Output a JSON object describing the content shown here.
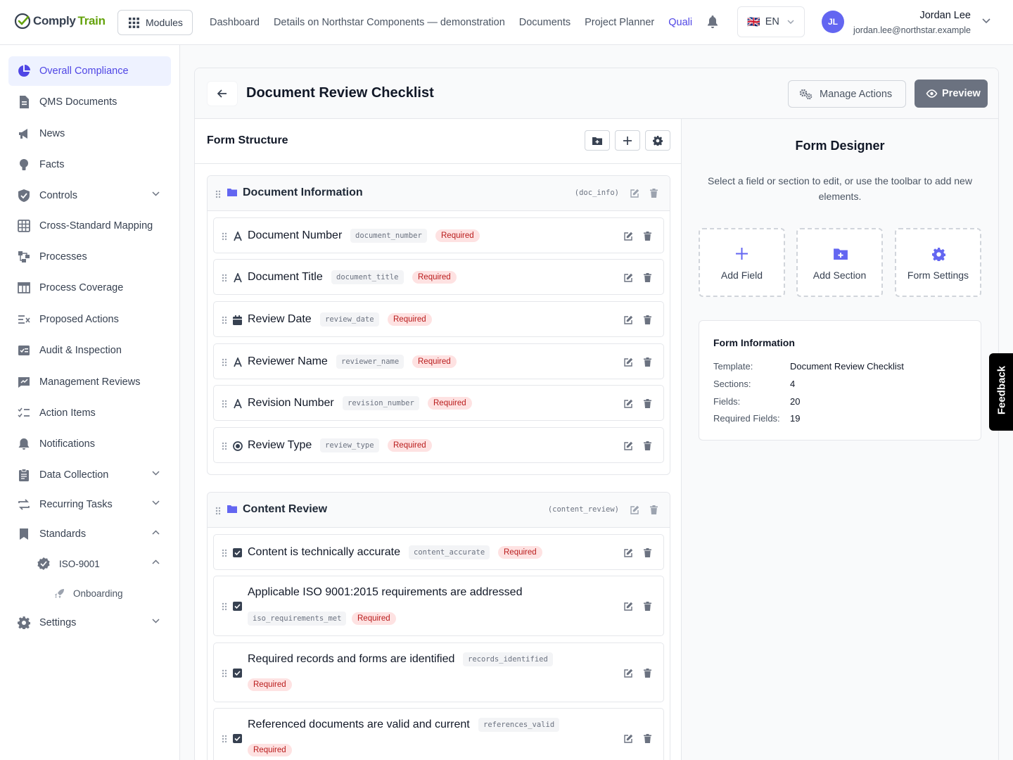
{
  "app": {
    "brand_part1": "Comply",
    "brand_part2": "Train",
    "modules_label": "Modules"
  },
  "nav": [
    "Dashboard",
    "Details on Northstar Components — demonstration",
    "Documents",
    "Project Planner",
    "Quali"
  ],
  "lang": {
    "flag": "🇬🇧",
    "code": "EN"
  },
  "user": {
    "initials": "JL",
    "name": "Jordan Lee",
    "email": "jordan.lee@northstar.example"
  },
  "sidebar": [
    {
      "label": "Overall Compliance",
      "icon": "pie-chart-icon",
      "active": true
    },
    {
      "label": "QMS Documents",
      "icon": "document-icon"
    },
    {
      "label": "News",
      "icon": "megaphone-icon"
    },
    {
      "label": "Facts",
      "icon": "lightbulb-icon"
    },
    {
      "label": "Controls",
      "icon": "shield-icon",
      "chevron": "down"
    },
    {
      "label": "Cross-Standard Mapping",
      "icon": "grid-icon"
    },
    {
      "label": "Processes",
      "icon": "process-icon"
    },
    {
      "label": "Process Coverage",
      "icon": "table-icon"
    },
    {
      "label": "Proposed Actions",
      "icon": "list-x-icon"
    },
    {
      "label": "Audit & Inspection",
      "icon": "audit-icon"
    },
    {
      "label": "Management Reviews",
      "icon": "review-icon"
    },
    {
      "label": "Action Items",
      "icon": "checklist-icon"
    },
    {
      "label": "Notifications",
      "icon": "bell-icon"
    },
    {
      "label": "Data Collection",
      "icon": "clipboard-icon",
      "chevron": "down"
    },
    {
      "label": "Recurring Tasks",
      "icon": "repeat-icon",
      "chevron": "down"
    },
    {
      "label": "Standards",
      "icon": "bookmark-icon",
      "chevron": "up"
    },
    {
      "label": "ISO-9001",
      "icon": "badge-check-icon",
      "chevron": "up"
    },
    {
      "label": "Onboarding",
      "icon": "rocket-icon"
    },
    {
      "label": "Settings",
      "icon": "gear-icon",
      "chevron": "down"
    }
  ],
  "page": {
    "title": "Document Review Checklist",
    "manage_label": "Manage Actions",
    "preview_label": "Preview"
  },
  "form_structure": {
    "title": "Form Structure",
    "sections": [
      {
        "title": "Document Information",
        "key": "(doc_info)",
        "fields": [
          {
            "label": "Document Number",
            "key": "document_number",
            "required": "Required",
            "icon": "text-icon"
          },
          {
            "label": "Document Title",
            "key": "document_title",
            "required": "Required",
            "icon": "text-icon"
          },
          {
            "label": "Review Date",
            "key": "review_date",
            "required": "Required",
            "icon": "calendar-icon"
          },
          {
            "label": "Reviewer Name",
            "key": "reviewer_name",
            "required": "Required",
            "icon": "text-icon"
          },
          {
            "label": "Revision Number",
            "key": "revision_number",
            "required": "Required",
            "icon": "text-icon"
          },
          {
            "label": "Review Type",
            "key": "review_type",
            "required": "Required",
            "icon": "radio-icon"
          }
        ]
      },
      {
        "title": "Content Review",
        "key": "(content_review)",
        "fields": [
          {
            "label": "Content is technically accurate",
            "key": "content_accurate",
            "required": "Required",
            "icon": "checkbox-icon"
          },
          {
            "label": "Applicable ISO 9001:2015 requirements are addressed",
            "key": "iso_requirements_met",
            "required": "Required",
            "icon": "checkbox-icon"
          },
          {
            "label": "Required records and forms are identified",
            "key": "records_identified",
            "required": "Required",
            "icon": "checkbox-icon"
          },
          {
            "label": "Referenced documents are valid and current",
            "key": "references_valid",
            "required": "Required",
            "icon": "checkbox-icon"
          }
        ]
      }
    ]
  },
  "designer": {
    "title": "Form Designer",
    "help": "Select a field or section to edit, or use the toolbar to add new elements.",
    "actions": [
      {
        "label": "Add Field",
        "icon": "plus-icon"
      },
      {
        "label": "Add Section",
        "icon": "folder-plus-icon"
      },
      {
        "label": "Form Settings",
        "icon": "gear-icon"
      }
    ],
    "info": {
      "title": "Form Information",
      "rows": [
        {
          "k": "Template:",
          "v": "Document Review Checklist"
        },
        {
          "k": "Sections:",
          "v": "4"
        },
        {
          "k": "Fields:",
          "v": "20"
        },
        {
          "k": "Required Fields:",
          "v": "19"
        }
      ]
    }
  },
  "feedback_label": "Feedback",
  "colors": {
    "accent": "#4f46e5",
    "required_bg": "#fee2e2",
    "required_fg": "#b91c1c",
    "brand_green": "#65a30d"
  }
}
